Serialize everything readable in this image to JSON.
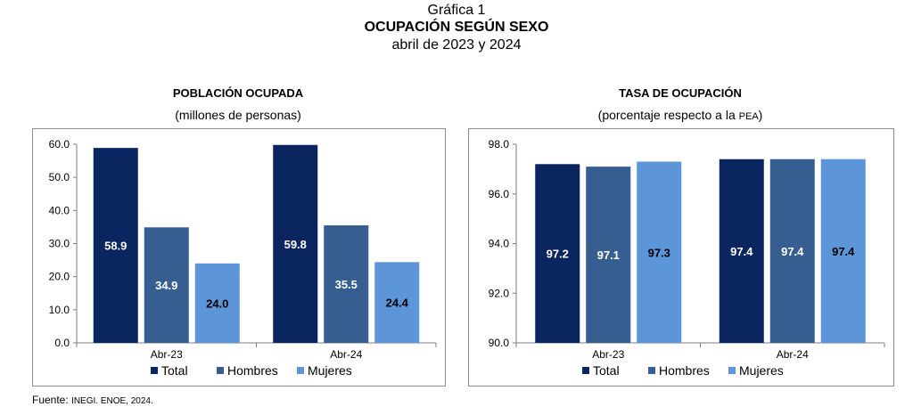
{
  "figure": {
    "label": "Gráfica 1",
    "title": "OCUPACIÓN SEGÚN SEXO",
    "period": "abril de 2023 y 2024"
  },
  "source": {
    "prefix": "Fuente:",
    "body": "INEGI. ENOE, 2024."
  },
  "colors": {
    "Total": "#0b2560",
    "Hombres": "#375e90",
    "Mujeres": "#5d95d9"
  },
  "chart_data": [
    {
      "type": "bar",
      "title": "POBLACIÓN OCUPADA",
      "subtitle": "(millones de personas)",
      "categories": [
        "Abr-23",
        "Abr-24"
      ],
      "series": [
        {
          "name": "Total",
          "values": [
            58.9,
            59.8
          ]
        },
        {
          "name": "Hombres",
          "values": [
            34.9,
            35.5
          ]
        },
        {
          "name": "Mujeres",
          "values": [
            24.0,
            24.4
          ]
        }
      ],
      "data_labels": [
        [
          "58.9",
          "34.9",
          "24.0"
        ],
        [
          "59.8",
          "35.5",
          "24.4"
        ]
      ],
      "ylim": [
        0,
        60
      ],
      "yticks": [
        "0.0",
        "10.0",
        "20.0",
        "30.0",
        "40.0",
        "50.0",
        "60.0"
      ],
      "legend": "bottom",
      "grid": false
    },
    {
      "type": "bar",
      "title": "TASA DE OCUPACIÓN",
      "subtitle_main": "(porcentaje respecto a la ",
      "subtitle_abbr": "PEA",
      "subtitle_end": ")",
      "categories": [
        "Abr-23",
        "Abr-24"
      ],
      "series": [
        {
          "name": "Total",
          "values": [
            97.2,
            97.4
          ]
        },
        {
          "name": "Hombres",
          "values": [
            97.1,
            97.4
          ]
        },
        {
          "name": "Mujeres",
          "values": [
            97.3,
            97.4
          ]
        }
      ],
      "data_labels": [
        [
          "97.2",
          "97.1",
          "97.3"
        ],
        [
          "97.4",
          "97.4",
          "97.4"
        ]
      ],
      "ylim": [
        90,
        98
      ],
      "yticks": [
        "90.0",
        "92.0",
        "94.0",
        "96.0",
        "98.0"
      ],
      "legend": "bottom",
      "grid": false
    }
  ]
}
